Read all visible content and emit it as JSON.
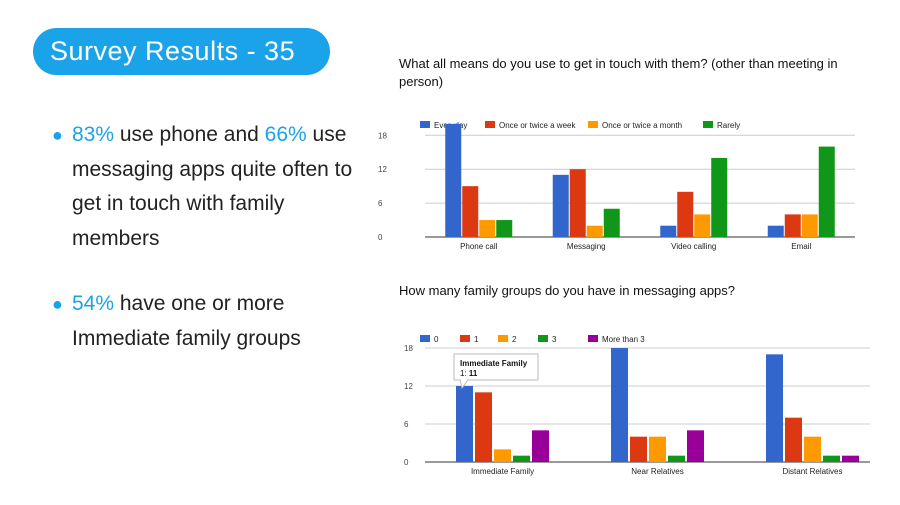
{
  "slide": {
    "title": "Survey Results - 35",
    "bullets": [
      {
        "pct1": "83%",
        "text1": " use phone and ",
        "pct2": "66%",
        "text2": " use messaging apps quite often to get in touch with family members"
      },
      {
        "pct1": "54%",
        "text1": " have one or more Immediate family groups"
      }
    ]
  },
  "colors": {
    "accent": "#1aa3e8",
    "series": [
      "#3366cc",
      "#dc3912",
      "#ff9900",
      "#109618",
      "#990099"
    ]
  },
  "chart_data": [
    {
      "type": "bar",
      "title": "What all means do you use to get in touch with them? (other than meeting in person)",
      "categories": [
        "Phone call",
        "Messaging",
        "Video calling",
        "Email"
      ],
      "series": [
        {
          "name": "Everyday",
          "values": [
            20,
            11,
            2,
            2
          ]
        },
        {
          "name": "Once or twice a week",
          "values": [
            9,
            12,
            8,
            4
          ]
        },
        {
          "name": "Once or twice a month",
          "values": [
            3,
            2,
            4,
            4
          ]
        },
        {
          "name": "Rarely",
          "values": [
            3,
            5,
            14,
            16
          ]
        }
      ],
      "yticks": [
        0,
        6,
        12,
        18
      ],
      "ylim": [
        0,
        20
      ],
      "grid": true,
      "legend": "top"
    },
    {
      "type": "bar",
      "title": "How many family groups do you have in messaging apps?",
      "categories": [
        "Immediate Family",
        "Near Relatives",
        "Distant Relatives"
      ],
      "series": [
        {
          "name": "0",
          "values": [
            12,
            19,
            17
          ]
        },
        {
          "name": "1",
          "values": [
            11,
            4,
            7
          ]
        },
        {
          "name": "2",
          "values": [
            2,
            4,
            4
          ]
        },
        {
          "name": "3",
          "values": [
            1,
            1,
            1
          ]
        },
        {
          "name": "More than 3",
          "values": [
            5,
            5,
            1
          ]
        }
      ],
      "yticks": [
        0,
        6,
        12,
        18
      ],
      "ylim": [
        0,
        18
      ],
      "grid": true,
      "legend": "top",
      "tooltip": {
        "title": "Immediate Family",
        "series": "1",
        "value": "11"
      }
    }
  ]
}
